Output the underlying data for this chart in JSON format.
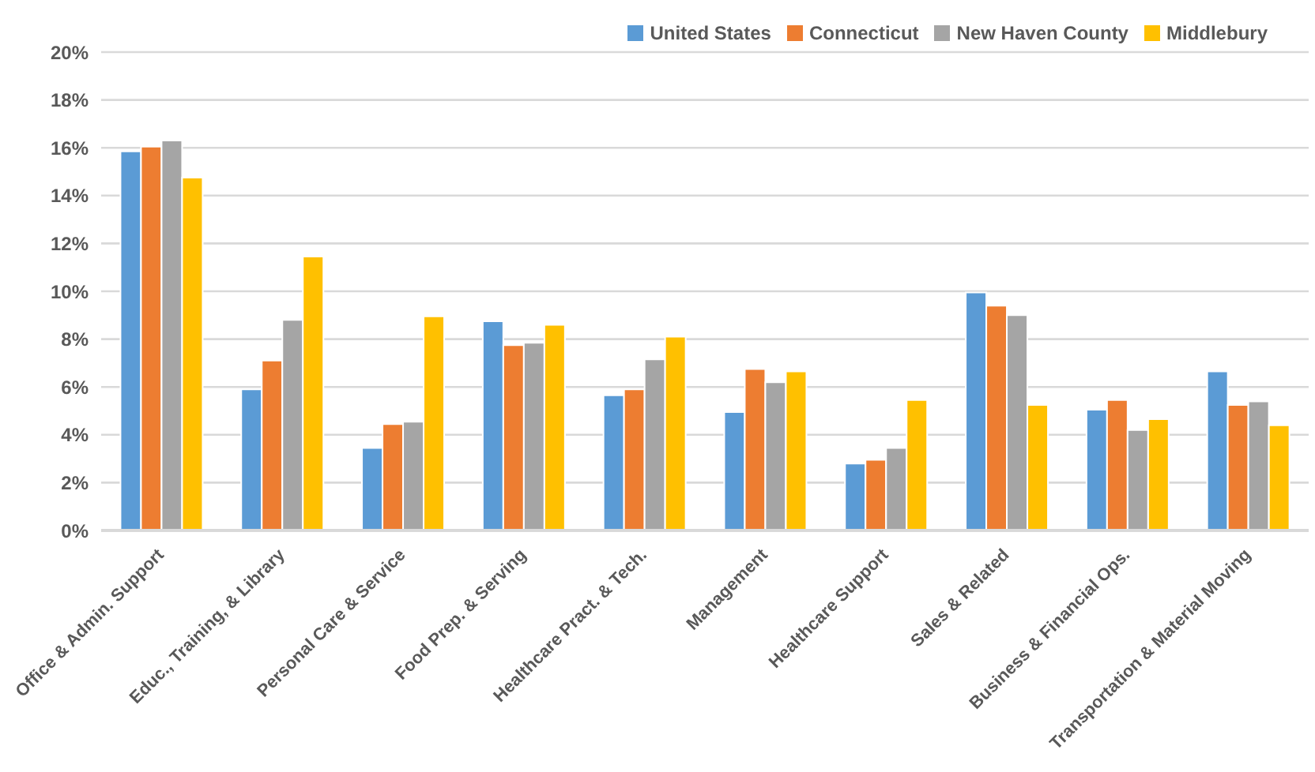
{
  "chart_data": {
    "type": "bar",
    "categories": [
      "Office & Admin. Support",
      "Educ., Training, & Library",
      "Personal Care & Service",
      "Food Prep. & Serving",
      "Healthcare Pract. & Tech.",
      "Management",
      "Healthcare Support",
      "Sales & Related",
      "Business & Financial Ops.",
      "Transportation & Material Moving"
    ],
    "series": [
      {
        "name": "United States",
        "color": "#5b9bd5",
        "values": [
          15.85,
          5.9,
          3.45,
          8.75,
          5.65,
          4.95,
          2.8,
          9.95,
          5.05,
          6.65
        ]
      },
      {
        "name": "Connecticut",
        "color": "#ed7d31",
        "values": [
          16.05,
          7.1,
          4.45,
          7.75,
          5.9,
          6.75,
          2.95,
          9.4,
          5.45,
          5.25
        ]
      },
      {
        "name": "New Haven County",
        "color": "#a5a5a5",
        "values": [
          16.3,
          8.8,
          4.55,
          7.85,
          7.15,
          6.2,
          3.45,
          9.0,
          4.2,
          5.4
        ]
      },
      {
        "name": "Middlebury",
        "color": "#ffc000",
        "values": [
          14.75,
          11.45,
          8.95,
          8.6,
          8.1,
          6.65,
          5.45,
          5.25,
          4.65,
          4.4
        ]
      }
    ],
    "ylim": [
      0,
      20
    ],
    "yticks": [
      {
        "value": 0,
        "label": "0%"
      },
      {
        "value": 2,
        "label": "2%"
      },
      {
        "value": 4,
        "label": "4%"
      },
      {
        "value": 6,
        "label": "6%"
      },
      {
        "value": 8,
        "label": "8%"
      },
      {
        "value": 10,
        "label": "10%"
      },
      {
        "value": 12,
        "label": "12%"
      },
      {
        "value": 14,
        "label": "14%"
      },
      {
        "value": 16,
        "label": "16%"
      },
      {
        "value": 18,
        "label": "18%"
      },
      {
        "value": 20,
        "label": "20%"
      }
    ],
    "grid": "y",
    "legend": "top right"
  }
}
